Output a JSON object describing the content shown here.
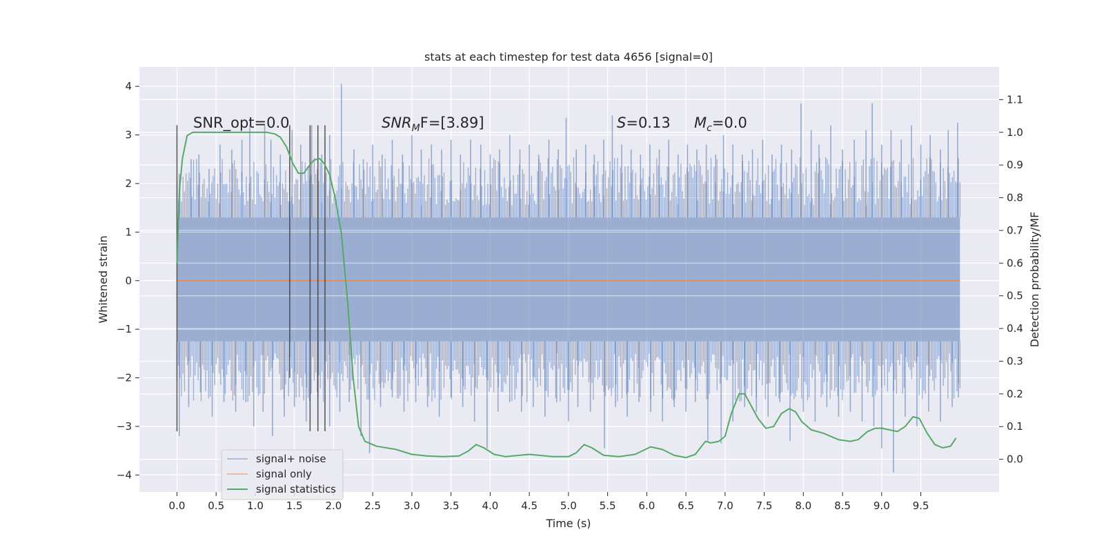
{
  "chart_data": {
    "type": "line",
    "title": "stats at each timestep for test data 4656 [signal=0]",
    "xlabel": "Time (s)",
    "ylabel_left": "Whitened strain",
    "ylabel_right": "Detection probability/MF",
    "xlim": [
      -0.48,
      10.5
    ],
    "ylim_left": [
      -4.35,
      4.4
    ],
    "ylim_right": [
      -0.1,
      1.2
    ],
    "x_ticks": [
      "0.0",
      "0.5",
      "1.0",
      "1.5",
      "2.0",
      "2.5",
      "3.0",
      "3.5",
      "4.0",
      "4.5",
      "5.0",
      "5.5",
      "6.0",
      "6.5",
      "7.0",
      "7.5",
      "8.0",
      "8.5",
      "9.0",
      "9.5"
    ],
    "y_ticks_left": [
      "−4",
      "−3",
      "−2",
      "−1",
      "0",
      "1",
      "2",
      "3",
      "4"
    ],
    "y_ticks_right": [
      "0.0",
      "0.1",
      "0.2",
      "0.3",
      "0.4",
      "0.5",
      "0.6",
      "0.7",
      "0.8",
      "0.9",
      "1.0",
      "1.1"
    ],
    "grid": true,
    "legend_position": "lower-left",
    "legend": [
      "signal+ noise",
      "signal only",
      "signal statistics"
    ],
    "annotations": {
      "snr_opt": "SNR_opt=0.0",
      "snr_mf_sym": "SNR",
      "snr_mf_sub": "M",
      "snr_mf_rest": "F=[3.89]",
      "s_sym": "S",
      "s_rest": "=0.13",
      "mc_sym": "M",
      "mc_sub": "c",
      "mc_rest": "=0.0"
    },
    "series": [
      {
        "name": "signal+ noise",
        "color": "#4c72b0",
        "axis": "left",
        "x_range": [
          0.0,
          10.0
        ],
        "band_low": -1.25,
        "band_high": 1.3,
        "spikes_high": [
          [
            0.03,
            2.2
          ],
          [
            0.18,
            2.5
          ],
          [
            0.28,
            2.6
          ],
          [
            0.41,
            2.3
          ],
          [
            0.55,
            2.8
          ],
          [
            0.7,
            2.7
          ],
          [
            0.83,
            2.9
          ],
          [
            0.93,
            3.2
          ],
          [
            1.12,
            3.2
          ],
          [
            1.2,
            2.9
          ],
          [
            1.32,
            2.6
          ],
          [
            1.47,
            3.1
          ],
          [
            1.58,
            2.8
          ],
          [
            1.72,
            3.2
          ],
          [
            1.85,
            2.6
          ],
          [
            1.95,
            3.0
          ],
          [
            2.1,
            4.05
          ],
          [
            2.26,
            2.7
          ],
          [
            2.38,
            2.5
          ],
          [
            2.5,
            2.8
          ],
          [
            2.62,
            2.6
          ],
          [
            2.75,
            2.9
          ],
          [
            2.88,
            2.6
          ],
          [
            3.0,
            3.0
          ],
          [
            3.12,
            2.7
          ],
          [
            3.25,
            2.8
          ],
          [
            3.38,
            2.7
          ],
          [
            3.5,
            2.9
          ],
          [
            3.62,
            2.6
          ],
          [
            3.75,
            2.9
          ],
          [
            3.88,
            2.8
          ],
          [
            4.0,
            2.6
          ],
          [
            4.12,
            2.7
          ],
          [
            4.25,
            3.0
          ],
          [
            4.38,
            2.7
          ],
          [
            4.5,
            2.8
          ],
          [
            4.62,
            2.6
          ],
          [
            4.75,
            2.9
          ],
          [
            4.87,
            2.7
          ],
          [
            4.97,
            3.35
          ],
          [
            5.1,
            2.7
          ],
          [
            5.22,
            2.8
          ],
          [
            5.33,
            2.6
          ],
          [
            5.45,
            2.9
          ],
          [
            5.56,
            3.4
          ],
          [
            5.68,
            2.8
          ],
          [
            5.8,
            2.7
          ],
          [
            5.92,
            2.6
          ],
          [
            6.04,
            2.8
          ],
          [
            6.16,
            2.7
          ],
          [
            6.28,
            2.9
          ],
          [
            6.4,
            2.6
          ],
          [
            6.52,
            2.8
          ],
          [
            6.64,
            2.7
          ],
          [
            6.76,
            2.8
          ],
          [
            6.88,
            2.6
          ],
          [
            6.98,
            3.0
          ],
          [
            7.1,
            2.8
          ],
          [
            7.22,
            2.6
          ],
          [
            7.35,
            2.7
          ],
          [
            7.48,
            2.9
          ],
          [
            7.6,
            2.6
          ],
          [
            7.72,
            2.8
          ],
          [
            7.85,
            2.7
          ],
          [
            7.97,
            3.65
          ],
          [
            8.1,
            3.1
          ],
          [
            8.2,
            2.8
          ],
          [
            8.35,
            3.2
          ],
          [
            8.5,
            2.7
          ],
          [
            8.65,
            2.9
          ],
          [
            8.8,
            3.1
          ],
          [
            8.88,
            3.65
          ],
          [
            9.0,
            2.8
          ],
          [
            9.12,
            3.1
          ],
          [
            9.25,
            2.9
          ],
          [
            9.38,
            3.2
          ],
          [
            9.5,
            2.8
          ],
          [
            9.62,
            3.0
          ],
          [
            9.75,
            2.7
          ],
          [
            9.85,
            3.1
          ],
          [
            9.97,
            3.25
          ]
        ],
        "spikes_low": [
          [
            0.03,
            -3.2
          ],
          [
            0.15,
            -2.6
          ],
          [
            0.3,
            -2.3
          ],
          [
            0.45,
            -2.8
          ],
          [
            0.6,
            -2.5
          ],
          [
            0.75,
            -2.7
          ],
          [
            0.88,
            -2.5
          ],
          [
            0.98,
            -3.0
          ],
          [
            1.1,
            -2.7
          ],
          [
            1.22,
            -3.2
          ],
          [
            1.37,
            -2.8
          ],
          [
            1.5,
            -2.6
          ],
          [
            1.65,
            -2.9
          ],
          [
            1.8,
            -2.4
          ],
          [
            1.95,
            -3.0
          ],
          [
            2.08,
            -2.7
          ],
          [
            2.2,
            -2.5
          ],
          [
            2.35,
            -3.2
          ],
          [
            2.46,
            -3.55
          ],
          [
            2.6,
            -2.6
          ],
          [
            2.75,
            -2.4
          ],
          [
            2.9,
            -2.7
          ],
          [
            3.05,
            -2.5
          ],
          [
            3.2,
            -2.6
          ],
          [
            3.35,
            -2.8
          ],
          [
            3.5,
            -2.4
          ],
          [
            3.65,
            -2.6
          ],
          [
            3.8,
            -2.9
          ],
          [
            3.96,
            -3.45
          ],
          [
            4.1,
            -2.7
          ],
          [
            4.25,
            -2.5
          ],
          [
            4.4,
            -2.7
          ],
          [
            4.55,
            -2.6
          ],
          [
            4.7,
            -2.8
          ],
          [
            4.85,
            -2.5
          ],
          [
            5.0,
            -2.9
          ],
          [
            5.12,
            -2.6
          ],
          [
            5.28,
            -2.7
          ],
          [
            5.46,
            -3.45
          ],
          [
            5.6,
            -2.6
          ],
          [
            5.75,
            -2.8
          ],
          [
            5.9,
            -2.5
          ],
          [
            6.05,
            -2.7
          ],
          [
            6.2,
            -2.9
          ],
          [
            6.35,
            -2.6
          ],
          [
            6.5,
            -2.7
          ],
          [
            6.62,
            -2.5
          ],
          [
            6.78,
            -3.3
          ],
          [
            6.95,
            -3.35
          ],
          [
            7.1,
            -2.9
          ],
          [
            7.25,
            -2.6
          ],
          [
            7.4,
            -2.7
          ],
          [
            7.55,
            -2.8
          ],
          [
            7.7,
            -2.5
          ],
          [
            7.83,
            -3.3
          ],
          [
            8.0,
            -2.7
          ],
          [
            8.15,
            -2.9
          ],
          [
            8.3,
            -2.6
          ],
          [
            8.45,
            -2.8
          ],
          [
            8.6,
            -2.7
          ],
          [
            8.75,
            -2.9
          ],
          [
            8.9,
            -3.0
          ],
          [
            9.0,
            -3.45
          ],
          [
            9.15,
            -3.95
          ],
          [
            9.3,
            -2.8
          ],
          [
            9.45,
            -3.0
          ],
          [
            9.6,
            -2.7
          ],
          [
            9.75,
            -2.9
          ],
          [
            9.9,
            -2.6
          ],
          [
            9.98,
            -2.4
          ]
        ]
      },
      {
        "name": "signal only",
        "color": "#dd8452",
        "axis": "left",
        "x": [
          0.0,
          10.0
        ],
        "y": [
          0.0,
          0.0
        ]
      },
      {
        "name": "signal statistics",
        "color": "#55a868",
        "axis": "right",
        "x": [
          0.0,
          0.03,
          0.07,
          0.13,
          0.2,
          0.4,
          0.6,
          0.8,
          1.0,
          1.15,
          1.25,
          1.32,
          1.4,
          1.48,
          1.55,
          1.62,
          1.68,
          1.75,
          1.82,
          1.88,
          1.95,
          2.02,
          2.1,
          2.18,
          2.25,
          2.32,
          2.4,
          2.55,
          2.8,
          3.0,
          3.2,
          3.4,
          3.6,
          3.72,
          3.82,
          3.92,
          4.05,
          4.2,
          4.5,
          4.8,
          5.0,
          5.1,
          5.2,
          5.3,
          5.45,
          5.65,
          5.85,
          6.05,
          6.2,
          6.35,
          6.5,
          6.62,
          6.7,
          6.75,
          6.82,
          6.92,
          7.0,
          7.08,
          7.18,
          7.25,
          7.32,
          7.42,
          7.52,
          7.62,
          7.72,
          7.82,
          7.9,
          7.98,
          8.1,
          8.25,
          8.45,
          8.6,
          8.7,
          8.82,
          8.92,
          9.0,
          9.1,
          9.2,
          9.3,
          9.4,
          9.48,
          9.58,
          9.68,
          9.78,
          9.88,
          9.95
        ],
        "y": [
          0.6,
          0.82,
          0.92,
          0.99,
          1.0,
          1.0,
          1.0,
          1.0,
          1.0,
          1.0,
          0.995,
          0.985,
          0.955,
          0.905,
          0.875,
          0.875,
          0.895,
          0.915,
          0.92,
          0.905,
          0.87,
          0.8,
          0.69,
          0.48,
          0.25,
          0.1,
          0.055,
          0.04,
          0.03,
          0.015,
          0.01,
          0.008,
          0.01,
          0.025,
          0.045,
          0.035,
          0.015,
          0.008,
          0.015,
          0.008,
          0.008,
          0.02,
          0.045,
          0.035,
          0.012,
          0.008,
          0.015,
          0.038,
          0.03,
          0.012,
          0.005,
          0.015,
          0.04,
          0.055,
          0.05,
          0.055,
          0.07,
          0.14,
          0.2,
          0.2,
          0.17,
          0.125,
          0.095,
          0.1,
          0.14,
          0.155,
          0.145,
          0.115,
          0.09,
          0.08,
          0.06,
          0.055,
          0.06,
          0.085,
          0.095,
          0.095,
          0.09,
          0.085,
          0.1,
          0.13,
          0.125,
          0.08,
          0.045,
          0.035,
          0.04,
          0.065
        ]
      }
    ],
    "vertical_markers": [
      {
        "x": 0.0,
        "y_top": 3.2,
        "y_bottom": -3.1
      },
      {
        "x": 1.44,
        "y_top": 3.2,
        "y_bottom": -2.0
      },
      {
        "x": 1.7,
        "y_top": 3.2,
        "y_bottom": -3.1
      },
      {
        "x": 1.8,
        "y_top": 3.2,
        "y_bottom": -3.1
      },
      {
        "x": 1.89,
        "y_top": 3.2,
        "y_bottom": -3.1
      }
    ]
  }
}
